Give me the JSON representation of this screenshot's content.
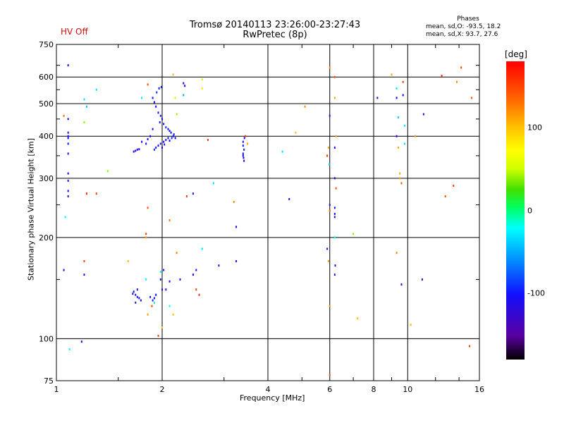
{
  "status_label": "HV Off",
  "title_line1": "Tromsø 20140113 23:26:00-23:27:43",
  "title_line2": "RwPretec (8p)",
  "stats": {
    "heading": "Phases",
    "line1": "mean, sd,O: -93.5, 18.2",
    "line2": "mean, sd,X: 93.7, 27.6"
  },
  "colorbar": {
    "unit_label": "[deg]",
    "ticks": [
      "100",
      "0",
      "-100"
    ],
    "tick_values": [
      100,
      0,
      -100
    ],
    "range": [
      -180,
      180
    ]
  },
  "chart_data": {
    "type": "scatter",
    "xlabel": "Frequency [MHz]",
    "ylabel": "Stationary phase Virtual Height [km]",
    "x_scale": "log",
    "y_scale": "log",
    "xlim": [
      1,
      16
    ],
    "ylim": [
      75,
      750
    ],
    "x_ticks": [
      1,
      2,
      4,
      6,
      8,
      10,
      16
    ],
    "x_tick_labels": [
      "1",
      "2",
      "4",
      "6",
      "8",
      "10",
      "16"
    ],
    "y_ticks": [
      75,
      100,
      200,
      300,
      400,
      500,
      600,
      750
    ],
    "y_tick_labels": [
      "75",
      "100",
      "200",
      "300",
      "400",
      "500",
      "600",
      "750"
    ],
    "grid_x": [
      2,
      4,
      6,
      8,
      10
    ],
    "grid_y": [
      100,
      200,
      300,
      400,
      500,
      600
    ],
    "points": [
      [
        1.88,
        520,
        -100
      ],
      [
        1.9,
        505,
        -110
      ],
      [
        1.92,
        490,
        -105
      ],
      [
        1.95,
        470,
        -100
      ],
      [
        1.98,
        460,
        -95
      ],
      [
        2.0,
        450,
        -100
      ],
      [
        1.97,
        440,
        -110
      ],
      [
        2.02,
        435,
        -100
      ],
      [
        2.05,
        425,
        -90
      ],
      [
        2.08,
        420,
        -100
      ],
      [
        2.1,
        415,
        -110
      ],
      [
        2.12,
        410,
        -100
      ],
      [
        2.15,
        400,
        -95
      ],
      [
        2.08,
        395,
        -100
      ],
      [
        2.05,
        390,
        -110
      ],
      [
        2.02,
        385,
        -100
      ],
      [
        1.98,
        380,
        -105
      ],
      [
        1.95,
        375,
        -110
      ],
      [
        1.92,
        370,
        -100
      ],
      [
        1.9,
        365,
        -95
      ],
      [
        2.0,
        370,
        -100
      ],
      [
        2.03,
        378,
        -110
      ],
      [
        2.1,
        388,
        -100
      ],
      [
        2.13,
        395,
        -90
      ],
      [
        2.16,
        405,
        -100
      ],
      [
        1.85,
        400,
        -110
      ],
      [
        1.82,
        392,
        -100
      ],
      [
        1.8,
        380,
        -105
      ],
      [
        1.88,
        420,
        -100
      ],
      [
        1.93,
        540,
        -90
      ],
      [
        1.96,
        555,
        -100
      ],
      [
        1.99,
        560,
        -110
      ],
      [
        1.7,
        365,
        -110
      ],
      [
        1.68,
        362,
        -105
      ],
      [
        1.66,
        360,
        -100
      ],
      [
        1.72,
        366,
        -110
      ],
      [
        1.75,
        385,
        -100
      ],
      [
        3.4,
        385,
        -110
      ],
      [
        3.4,
        375,
        -100
      ],
      [
        3.42,
        365,
        -95
      ],
      [
        3.4,
        355,
        -110
      ],
      [
        3.41,
        345,
        -100
      ],
      [
        3.42,
        338,
        -105
      ],
      [
        3.4,
        350,
        -100
      ],
      [
        3.43,
        395,
        -110
      ],
      [
        1.66,
        138,
        -100
      ],
      [
        1.68,
        135,
        -110
      ],
      [
        1.7,
        133,
        -105
      ],
      [
        1.65,
        136,
        -100
      ],
      [
        1.7,
        140,
        -110
      ],
      [
        1.72,
        132,
        -100
      ],
      [
        1.74,
        130,
        -105
      ],
      [
        1.68,
        128,
        -110
      ],
      [
        1.85,
        133,
        -100
      ],
      [
        1.88,
        130,
        -95
      ],
      [
        1.9,
        132,
        -110
      ],
      [
        1.92,
        135,
        -100
      ],
      [
        1.98,
        150,
        -105
      ],
      [
        2.0,
        140,
        -110
      ],
      [
        2.05,
        140,
        -100
      ],
      [
        2.1,
        148,
        -100
      ],
      [
        2.02,
        160,
        -95
      ],
      [
        2.25,
        150,
        -110
      ],
      [
        2.45,
        155,
        -100
      ],
      [
        2.5,
        160,
        -110
      ],
      [
        1.8,
        150,
        -20
      ],
      [
        1.98,
        158,
        -15
      ],
      [
        1.9,
        128,
        -10
      ],
      [
        2.1,
        125,
        -20
      ],
      [
        1.08,
        650,
        -110
      ],
      [
        1.08,
        410,
        -110
      ],
      [
        1.08,
        400,
        -100
      ],
      [
        1.08,
        395,
        -105
      ],
      [
        1.08,
        380,
        -100
      ],
      [
        1.08,
        355,
        -110
      ],
      [
        1.08,
        310,
        -100
      ],
      [
        1.08,
        295,
        -105
      ],
      [
        1.08,
        275,
        -100
      ],
      [
        1.08,
        265,
        -110
      ],
      [
        1.08,
        450,
        -100
      ],
      [
        1.05,
        160,
        -110
      ],
      [
        1.2,
        155,
        -110
      ],
      [
        1.2,
        515,
        -30
      ],
      [
        1.22,
        490,
        -40
      ],
      [
        1.3,
        550,
        -30
      ],
      [
        1.2,
        440,
        40
      ],
      [
        1.18,
        98,
        -110
      ],
      [
        1.09,
        93,
        -20
      ],
      [
        1.06,
        230,
        -20
      ],
      [
        1.4,
        315,
        40
      ],
      [
        1.2,
        170,
        150
      ],
      [
        1.22,
        270,
        160
      ],
      [
        1.3,
        270,
        150
      ],
      [
        1.05,
        460,
        130
      ],
      [
        1.6,
        170,
        100
      ],
      [
        1.75,
        520,
        -30
      ],
      [
        1.82,
        570,
        140
      ],
      [
        1.82,
        245,
        140
      ],
      [
        1.8,
        205,
        150
      ],
      [
        1.8,
        200,
        110
      ],
      [
        1.87,
        125,
        150
      ],
      [
        1.82,
        118,
        110
      ],
      [
        1.95,
        102,
        150
      ],
      [
        2.0,
        108,
        100
      ],
      [
        2.1,
        225,
        130
      ],
      [
        2.15,
        118,
        100
      ],
      [
        2.2,
        180,
        120
      ],
      [
        2.15,
        610,
        100
      ],
      [
        2.18,
        520,
        50
      ],
      [
        2.2,
        465,
        40
      ],
      [
        2.18,
        395,
        -110
      ],
      [
        2.3,
        530,
        -50
      ],
      [
        2.3,
        575,
        -100
      ],
      [
        2.32,
        565,
        -110
      ],
      [
        2.35,
        265,
        150
      ],
      [
        2.45,
        270,
        -110
      ],
      [
        2.5,
        140,
        150
      ],
      [
        2.55,
        135,
        160
      ],
      [
        2.6,
        185,
        -30
      ],
      [
        2.6,
        590,
        50
      ],
      [
        2.6,
        555,
        80
      ],
      [
        2.7,
        390,
        150
      ],
      [
        2.8,
        290,
        -30
      ],
      [
        2.9,
        165,
        -110
      ],
      [
        3.2,
        255,
        120
      ],
      [
        3.25,
        215,
        -110
      ],
      [
        3.25,
        170,
        -110
      ],
      [
        3.45,
        400,
        150
      ],
      [
        3.5,
        380,
        110
      ],
      [
        4.4,
        360,
        -30
      ],
      [
        4.6,
        260,
        -110
      ],
      [
        4.8,
        410,
        100
      ],
      [
        5.1,
        490,
        120
      ],
      [
        6.0,
        640,
        120
      ],
      [
        6.0,
        460,
        -110
      ],
      [
        5.95,
        370,
        110
      ],
      [
        5.98,
        330,
        -40
      ],
      [
        5.9,
        350,
        160
      ],
      [
        6.0,
        250,
        -110
      ],
      [
        6.0,
        240,
        140
      ],
      [
        5.9,
        185,
        -110
      ],
      [
        5.95,
        170,
        110
      ],
      [
        6.0,
        125,
        120
      ],
      [
        6.0,
        78,
        140
      ],
      [
        6.2,
        600,
        140
      ],
      [
        6.2,
        520,
        110
      ],
      [
        6.25,
        400,
        110
      ],
      [
        6.2,
        370,
        -100
      ],
      [
        6.2,
        300,
        -110
      ],
      [
        6.25,
        280,
        140
      ],
      [
        6.2,
        245,
        -110
      ],
      [
        6.2,
        235,
        -110
      ],
      [
        6.2,
        230,
        -110
      ],
      [
        6.2,
        200,
        -20
      ],
      [
        6.22,
        165,
        -110
      ],
      [
        6.2,
        155,
        -110
      ],
      [
        7.0,
        205,
        40
      ],
      [
        7.2,
        115,
        100
      ],
      [
        8.2,
        520,
        -110
      ],
      [
        9.0,
        610,
        110
      ],
      [
        9.3,
        555,
        -30
      ],
      [
        9.3,
        520,
        -100
      ],
      [
        9.4,
        455,
        -40
      ],
      [
        9.3,
        400,
        -110
      ],
      [
        9.4,
        370,
        110
      ],
      [
        9.5,
        310,
        110
      ],
      [
        9.5,
        300,
        110
      ],
      [
        9.6,
        290,
        140
      ],
      [
        9.7,
        580,
        150
      ],
      [
        9.7,
        530,
        -100
      ],
      [
        9.8,
        430,
        -30
      ],
      [
        9.8,
        380,
        -30
      ],
      [
        9.3,
        180,
        120
      ],
      [
        9.6,
        145,
        -110
      ],
      [
        10.2,
        110,
        100
      ],
      [
        10.5,
        400,
        110
      ],
      [
        11.0,
        150,
        -120
      ],
      [
        11.1,
        465,
        -120
      ],
      [
        12.5,
        605,
        160
      ],
      [
        12.8,
        265,
        140
      ],
      [
        13.5,
        285,
        150
      ],
      [
        13.8,
        580,
        120
      ],
      [
        14.2,
        640,
        150
      ],
      [
        15.2,
        520,
        140
      ],
      [
        15.0,
        95,
        150
      ]
    ]
  }
}
